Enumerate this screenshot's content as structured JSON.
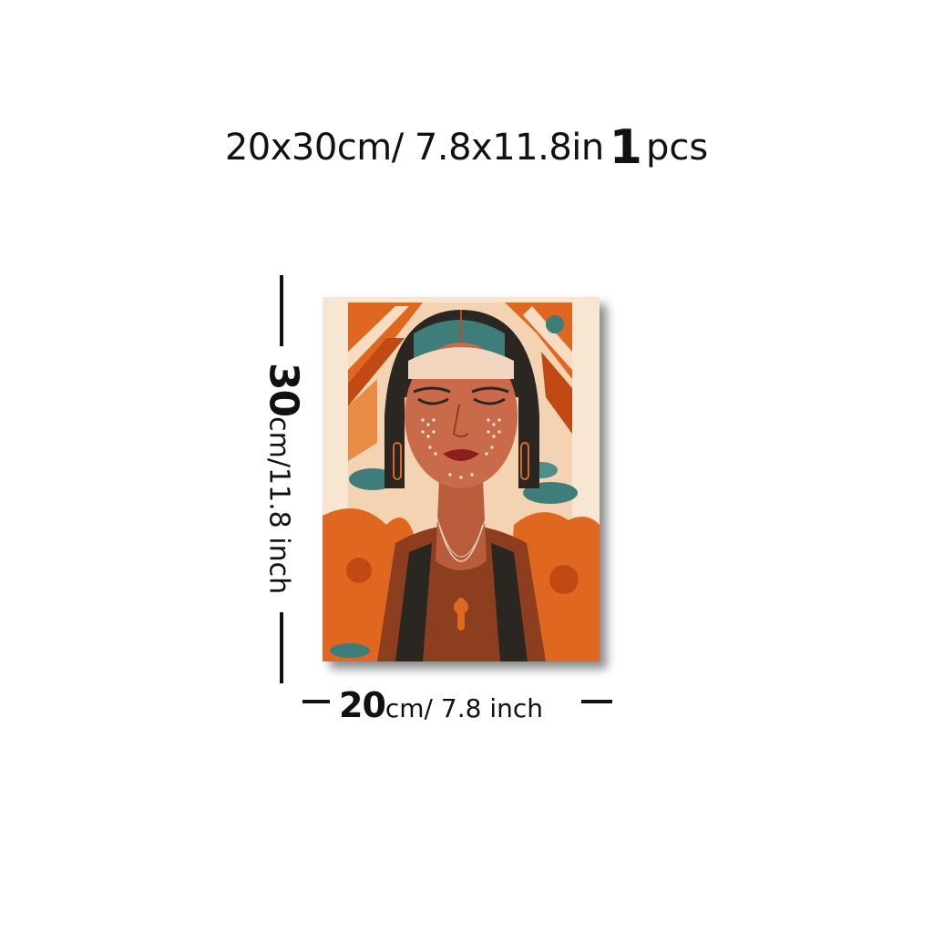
{
  "headline": {
    "size": "20x30cm/ 7.8x11.8in",
    "quantity": "1",
    "unit": "pcs"
  },
  "height_label": {
    "number": "30",
    "text": "cm/11.8 inch"
  },
  "width_label": {
    "number": "20",
    "text": "cm/ 7.8 inch"
  },
  "artwork": {
    "subject": "stylized portrait of a woman with closed eyes and patterned face paint",
    "colors": {
      "orange": "#e0671f",
      "deep_orange": "#c14a14",
      "cream": "#f6dcc0",
      "teal": "#3f7d7a",
      "dark": "#2a2622",
      "skin": "#c96b4a"
    }
  }
}
